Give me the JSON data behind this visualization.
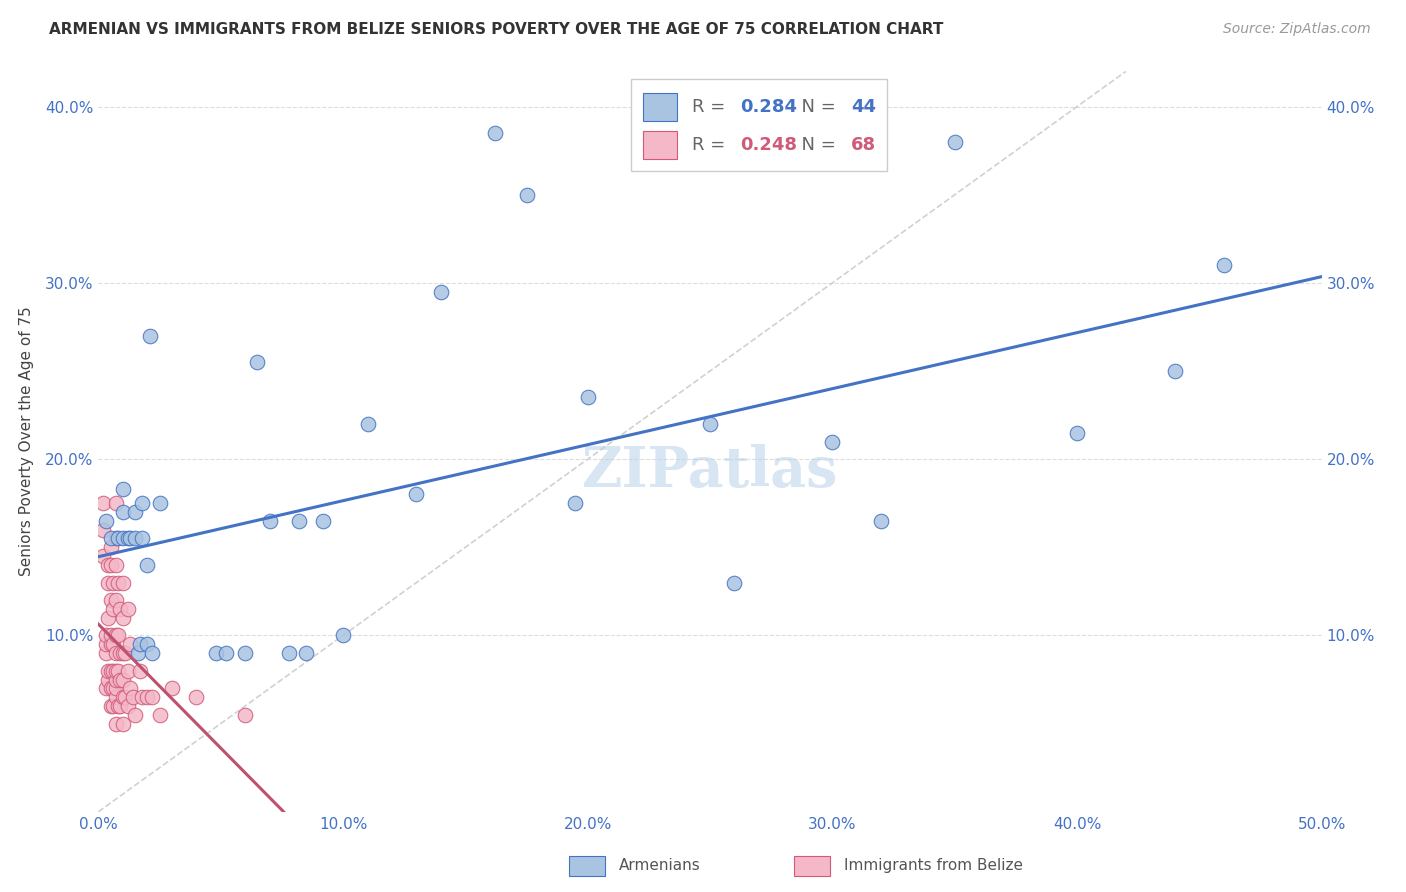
{
  "title": "ARMENIAN VS IMMIGRANTS FROM BELIZE SENIORS POVERTY OVER THE AGE OF 75 CORRELATION CHART",
  "source": "Source: ZipAtlas.com",
  "ylabel": "Seniors Poverty Over the Age of 75",
  "xlim": [
    0.0,
    0.5
  ],
  "ylim": [
    0.0,
    0.42
  ],
  "xticks": [
    0.0,
    0.1,
    0.2,
    0.3,
    0.4,
    0.5
  ],
  "yticks": [
    0.0,
    0.1,
    0.2,
    0.3,
    0.4
  ],
  "xtick_labels": [
    "0.0%",
    "10.0%",
    "20.0%",
    "30.0%",
    "40.0%",
    "50.0%"
  ],
  "ytick_labels": [
    "",
    "10.0%",
    "20.0%",
    "30.0%",
    "40.0%"
  ],
  "armenian_color": "#a8c4e0",
  "belize_color": "#f4b8c8",
  "armenian_edge_color": "#4472c4",
  "belize_edge_color": "#d05a7a",
  "armenian_line_color": "#4472c4",
  "belize_line_color": "#c05070",
  "diagonal_color": "#cccccc",
  "R_armenian": 0.284,
  "N_armenian": 44,
  "R_belize": 0.248,
  "N_belize": 68,
  "watermark": "ZIPatlas",
  "background_color": "#ffffff",
  "grid_color": "#dddddd",
  "armenian_x": [
    0.003,
    0.005,
    0.008,
    0.01,
    0.01,
    0.01,
    0.012,
    0.013,
    0.015,
    0.015,
    0.016,
    0.017,
    0.018,
    0.018,
    0.02,
    0.02,
    0.021,
    0.022,
    0.025,
    0.048,
    0.052,
    0.06,
    0.065,
    0.07,
    0.078,
    0.082,
    0.085,
    0.092,
    0.1,
    0.11,
    0.13,
    0.14,
    0.162,
    0.175,
    0.195,
    0.2,
    0.25,
    0.26,
    0.3,
    0.32,
    0.35,
    0.4,
    0.44,
    0.46
  ],
  "armenian_y": [
    0.165,
    0.155,
    0.155,
    0.155,
    0.17,
    0.183,
    0.155,
    0.155,
    0.155,
    0.17,
    0.09,
    0.095,
    0.155,
    0.175,
    0.095,
    0.14,
    0.27,
    0.09,
    0.175,
    0.09,
    0.09,
    0.09,
    0.255,
    0.165,
    0.09,
    0.165,
    0.09,
    0.165,
    0.1,
    0.22,
    0.18,
    0.295,
    0.385,
    0.35,
    0.175,
    0.235,
    0.22,
    0.13,
    0.21,
    0.165,
    0.38,
    0.215,
    0.25,
    0.31
  ],
  "belize_x": [
    0.002,
    0.002,
    0.002,
    0.003,
    0.003,
    0.003,
    0.003,
    0.004,
    0.004,
    0.004,
    0.004,
    0.004,
    0.005,
    0.005,
    0.005,
    0.005,
    0.005,
    0.005,
    0.005,
    0.005,
    0.006,
    0.006,
    0.006,
    0.006,
    0.006,
    0.006,
    0.007,
    0.007,
    0.007,
    0.007,
    0.007,
    0.007,
    0.007,
    0.007,
    0.007,
    0.007,
    0.007,
    0.008,
    0.008,
    0.008,
    0.008,
    0.009,
    0.009,
    0.009,
    0.009,
    0.01,
    0.01,
    0.01,
    0.01,
    0.01,
    0.01,
    0.011,
    0.011,
    0.012,
    0.012,
    0.012,
    0.013,
    0.013,
    0.014,
    0.015,
    0.017,
    0.018,
    0.02,
    0.022,
    0.025,
    0.03,
    0.04,
    0.06
  ],
  "belize_y": [
    0.145,
    0.16,
    0.175,
    0.07,
    0.09,
    0.095,
    0.1,
    0.075,
    0.08,
    0.11,
    0.13,
    0.14,
    0.06,
    0.07,
    0.08,
    0.095,
    0.1,
    0.12,
    0.14,
    0.15,
    0.06,
    0.07,
    0.08,
    0.095,
    0.115,
    0.13,
    0.05,
    0.065,
    0.07,
    0.075,
    0.08,
    0.09,
    0.1,
    0.12,
    0.14,
    0.155,
    0.175,
    0.06,
    0.08,
    0.1,
    0.13,
    0.06,
    0.075,
    0.09,
    0.115,
    0.05,
    0.065,
    0.075,
    0.09,
    0.11,
    0.13,
    0.065,
    0.09,
    0.06,
    0.08,
    0.115,
    0.07,
    0.095,
    0.065,
    0.055,
    0.08,
    0.065,
    0.065,
    0.065,
    0.055,
    0.07,
    0.065,
    0.055
  ],
  "title_fontsize": 11,
  "axis_label_fontsize": 11,
  "tick_fontsize": 11,
  "watermark_fontsize": 40,
  "source_fontsize": 10
}
